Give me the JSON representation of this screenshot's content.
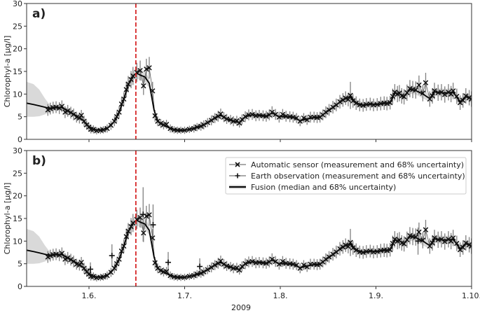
{
  "chart_data": [
    {
      "type": "line",
      "panel_label": "a)",
      "ylabel": "Chlorophyl-a [µg/l]",
      "xlabel": "",
      "ylim": [
        0,
        30
      ],
      "xlim": [
        5.348,
        10
      ],
      "yticks": [
        0,
        5,
        10,
        15,
        20,
        25,
        30
      ],
      "xticks": [
        6,
        7,
        8,
        9,
        10
      ],
      "xtick_labels": [
        "",
        "",
        "",
        "",
        ""
      ],
      "show_eo": false
    },
    {
      "type": "line",
      "panel_label": "b)",
      "ylabel": "Chlorophyl-a [µg/l]",
      "xlabel": "2009",
      "ylim": [
        0,
        30
      ],
      "xlim": [
        5.348,
        10
      ],
      "yticks": [
        0,
        5,
        10,
        15,
        20,
        25,
        30
      ],
      "xticks": [
        6,
        7,
        8,
        9,
        10
      ],
      "xtick_labels": [
        "1.6.",
        "1.7.",
        "1.8.",
        "1.9.",
        "1.10."
      ],
      "show_eo": true,
      "legend": {
        "placement": "top-right",
        "entries": [
          "Automatic sensor (measurement and 68% uncertainty)",
          "Earth observation (measurement and 68% uncertainty)",
          "Fusion (median and 68% uncertainty)"
        ]
      }
    }
  ],
  "shared_series": {
    "event_line_x": 6.49,
    "event_line_color": "#d62728",
    "fusion_columns": [
      "x_month",
      "median",
      "lower68",
      "upper68"
    ],
    "fusion": [
      [
        5.348,
        8.0,
        5.0,
        12.7
      ],
      [
        5.42,
        7.7,
        5.0,
        12.2
      ],
      [
        5.48,
        7.4,
        5.1,
        11.0
      ],
      [
        5.54,
        7.1,
        5.5,
        9.0
      ],
      [
        5.595,
        6.8,
        6.1,
        7.5
      ],
      [
        5.656,
        7.0,
        6.4,
        7.6
      ],
      [
        5.717,
        7.0,
        6.4,
        7.6
      ],
      [
        5.778,
        6.3,
        5.7,
        6.9
      ],
      [
        5.839,
        5.6,
        5.0,
        6.2
      ],
      [
        5.9,
        4.8,
        4.2,
        5.4
      ],
      [
        5.949,
        4.0,
        3.4,
        4.6
      ],
      [
        5.998,
        2.8,
        2.3,
        3.3
      ],
      [
        6.046,
        2.2,
        1.8,
        2.6
      ],
      [
        6.12,
        2.0,
        1.6,
        2.4
      ],
      [
        6.19,
        2.4,
        2.0,
        2.8
      ],
      [
        6.266,
        4.0,
        3.5,
        4.5
      ],
      [
        6.315,
        6.0,
        5.4,
        6.6
      ],
      [
        6.364,
        8.9,
        8.2,
        9.6
      ],
      [
        6.41,
        12.0,
        11.2,
        12.8
      ],
      [
        6.46,
        14.0,
        13.0,
        15.0
      ],
      [
        6.5,
        14.6,
        13.5,
        15.7
      ],
      [
        6.535,
        14.2,
        13.0,
        15.4
      ],
      [
        6.584,
        13.8,
        12.6,
        15.0
      ],
      [
        6.63,
        12.4,
        11.3,
        13.5
      ],
      [
        6.68,
        6.5,
        5.8,
        7.2
      ],
      [
        6.718,
        4.0,
        3.5,
        4.5
      ],
      [
        6.78,
        3.2,
        2.8,
        3.6
      ],
      [
        6.85,
        2.4,
        2.0,
        2.8
      ],
      [
        6.925,
        2.0,
        1.6,
        2.4
      ],
      [
        7.0,
        2.0,
        1.6,
        2.4
      ],
      [
        7.097,
        2.4,
        2.0,
        2.8
      ],
      [
        7.17,
        2.9,
        2.5,
        3.3
      ],
      [
        7.24,
        3.7,
        3.2,
        4.2
      ],
      [
        7.316,
        4.7,
        4.2,
        5.2
      ],
      [
        7.377,
        5.3,
        4.8,
        5.8
      ],
      [
        7.44,
        4.5,
        4.0,
        5.0
      ],
      [
        7.51,
        4.0,
        3.5,
        4.5
      ],
      [
        7.573,
        3.7,
        3.2,
        4.2
      ],
      [
        7.634,
        5.0,
        4.5,
        5.5
      ],
      [
        7.707,
        5.4,
        4.9,
        5.9
      ],
      [
        7.78,
        5.3,
        4.8,
        5.8
      ],
      [
        7.853,
        5.1,
        4.6,
        5.6
      ],
      [
        7.914,
        5.8,
        5.2,
        6.4
      ],
      [
        7.988,
        5.0,
        4.5,
        5.5
      ],
      [
        8.06,
        5.0,
        4.5,
        5.5
      ],
      [
        8.134,
        4.9,
        4.4,
        5.4
      ],
      [
        8.207,
        4.1,
        3.6,
        4.6
      ],
      [
        8.28,
        4.5,
        4.0,
        5.0
      ],
      [
        8.353,
        4.8,
        4.3,
        5.3
      ],
      [
        8.415,
        4.9,
        4.4,
        5.4
      ],
      [
        8.476,
        5.9,
        5.3,
        6.5
      ],
      [
        8.55,
        7.0,
        6.4,
        7.6
      ],
      [
        8.623,
        8.2,
        7.5,
        8.9
      ],
      [
        8.683,
        9.0,
        8.3,
        9.7
      ],
      [
        8.733,
        9.4,
        8.6,
        10.2
      ],
      [
        8.793,
        8.1,
        7.4,
        8.8
      ],
      [
        8.866,
        7.5,
        6.8,
        8.2
      ],
      [
        8.94,
        7.8,
        7.1,
        8.5
      ],
      [
        9.013,
        7.7,
        7.0,
        8.4
      ],
      [
        9.086,
        8.0,
        7.3,
        8.7
      ],
      [
        9.148,
        8.1,
        7.4,
        8.8
      ],
      [
        9.197,
        10.2,
        9.4,
        11.0
      ],
      [
        9.245,
        10.1,
        9.3,
        10.9
      ],
      [
        9.294,
        9.5,
        8.7,
        10.3
      ],
      [
        9.355,
        11.0,
        10.1,
        11.9
      ],
      [
        9.416,
        10.8,
        9.9,
        11.7
      ],
      [
        9.49,
        10.0,
        9.1,
        10.9
      ],
      [
        9.563,
        9.0,
        8.2,
        9.8
      ],
      [
        9.612,
        10.5,
        9.6,
        11.4
      ],
      [
        9.685,
        10.3,
        9.4,
        11.2
      ],
      [
        9.758,
        10.3,
        9.4,
        11.2
      ],
      [
        9.807,
        10.4,
        9.5,
        11.3
      ],
      [
        9.88,
        8.3,
        7.5,
        9.1
      ],
      [
        9.94,
        9.4,
        8.6,
        10.2
      ],
      [
        9.998,
        8.9,
        8.1,
        9.7
      ]
    ],
    "sensor_columns": [
      "x_month",
      "value",
      "uncertainty68"
    ],
    "sensor": [
      [
        5.57,
        6.5,
        1.3
      ],
      [
        5.595,
        6.8,
        1.3
      ],
      [
        5.625,
        7.0,
        1.3
      ],
      [
        5.656,
        7.1,
        1.3
      ],
      [
        5.69,
        6.9,
        1.3
      ],
      [
        5.717,
        7.3,
        1.3
      ],
      [
        5.75,
        6.0,
        1.3
      ],
      [
        5.778,
        6.3,
        1.3
      ],
      [
        5.81,
        5.9,
        1.3
      ],
      [
        5.839,
        5.5,
        1.3
      ],
      [
        5.87,
        4.9,
        1.2
      ],
      [
        5.9,
        4.7,
        1.2
      ],
      [
        5.92,
        5.3,
        1.2
      ],
      [
        5.949,
        4.0,
        1.2
      ],
      [
        5.975,
        3.2,
        1.0
      ],
      [
        5.998,
        2.7,
        1.0
      ],
      [
        6.02,
        2.2,
        0.9
      ],
      [
        6.046,
        2.2,
        0.9
      ],
      [
        6.08,
        1.9,
        0.8
      ],
      [
        6.12,
        2.0,
        0.8
      ],
      [
        6.15,
        2.1,
        0.8
      ],
      [
        6.19,
        2.4,
        0.9
      ],
      [
        6.23,
        3.1,
        1.0
      ],
      [
        6.266,
        4.0,
        1.1
      ],
      [
        6.29,
        5.0,
        1.2
      ],
      [
        6.315,
        6.0,
        1.3
      ],
      [
        6.34,
        7.8,
        1.4
      ],
      [
        6.364,
        8.9,
        1.5
      ],
      [
        6.39,
        11.0,
        1.7
      ],
      [
        6.41,
        12.2,
        1.8
      ],
      [
        6.44,
        13.2,
        1.9
      ],
      [
        6.46,
        14.0,
        2.0
      ],
      [
        6.5,
        14.8,
        2.1
      ],
      [
        6.535,
        15.2,
        2.2
      ],
      [
        6.57,
        11.8,
        2.0
      ],
      [
        6.6,
        15.5,
        2.3
      ],
      [
        6.63,
        15.8,
        2.4
      ],
      [
        6.665,
        10.7,
        2.0
      ],
      [
        6.69,
        5.2,
        1.3
      ],
      [
        6.718,
        4.0,
        1.1
      ],
      [
        6.75,
        3.5,
        1.0
      ],
      [
        6.78,
        3.2,
        1.0
      ],
      [
        6.81,
        3.3,
        1.0
      ],
      [
        6.85,
        2.4,
        0.9
      ],
      [
        6.89,
        2.1,
        0.8
      ],
      [
        6.925,
        2.0,
        0.8
      ],
      [
        6.96,
        2.0,
        0.8
      ],
      [
        7.0,
        2.0,
        0.8
      ],
      [
        7.05,
        2.2,
        0.8
      ],
      [
        7.097,
        2.4,
        0.9
      ],
      [
        7.13,
        2.7,
        0.9
      ],
      [
        7.17,
        2.9,
        1.0
      ],
      [
        7.2,
        3.2,
        1.0
      ],
      [
        7.24,
        3.7,
        1.0
      ],
      [
        7.28,
        4.2,
        1.1
      ],
      [
        7.316,
        4.7,
        1.1
      ],
      [
        7.35,
        5.1,
        1.2
      ],
      [
        7.377,
        5.6,
        1.2
      ],
      [
        7.41,
        4.9,
        1.1
      ],
      [
        7.44,
        4.5,
        1.1
      ],
      [
        7.48,
        4.3,
        1.1
      ],
      [
        7.51,
        4.0,
        1.1
      ],
      [
        7.545,
        4.1,
        1.1
      ],
      [
        7.573,
        3.6,
        1.0
      ],
      [
        7.6,
        4.4,
        1.1
      ],
      [
        7.634,
        5.0,
        1.2
      ],
      [
        7.67,
        5.4,
        1.2
      ],
      [
        7.707,
        5.5,
        1.2
      ],
      [
        7.745,
        5.2,
        1.2
      ],
      [
        7.78,
        5.3,
        1.2
      ],
      [
        7.82,
        5.2,
        1.2
      ],
      [
        7.853,
        5.1,
        1.2
      ],
      [
        7.885,
        5.4,
        1.2
      ],
      [
        7.914,
        6.0,
        1.3
      ],
      [
        7.95,
        5.5,
        1.2
      ],
      [
        7.988,
        4.9,
        1.2
      ],
      [
        8.025,
        5.5,
        1.2
      ],
      [
        8.06,
        5.1,
        1.2
      ],
      [
        8.1,
        5.0,
        1.2
      ],
      [
        8.134,
        4.9,
        1.2
      ],
      [
        8.17,
        4.7,
        1.1
      ],
      [
        8.207,
        4.0,
        1.1
      ],
      [
        8.245,
        4.7,
        1.1
      ],
      [
        8.28,
        4.3,
        1.1
      ],
      [
        8.315,
        4.9,
        1.2
      ],
      [
        8.353,
        4.9,
        1.2
      ],
      [
        8.385,
        4.8,
        1.2
      ],
      [
        8.415,
        4.9,
        1.2
      ],
      [
        8.445,
        5.4,
        1.2
      ],
      [
        8.476,
        6.0,
        1.3
      ],
      [
        8.51,
        6.5,
        1.3
      ],
      [
        8.55,
        7.1,
        1.4
      ],
      [
        8.585,
        7.6,
        1.4
      ],
      [
        8.623,
        8.3,
        1.5
      ],
      [
        8.655,
        8.7,
        1.5
      ],
      [
        8.683,
        9.1,
        1.5
      ],
      [
        8.71,
        8.8,
        1.5
      ],
      [
        8.733,
        9.7,
        3.0
      ],
      [
        8.76,
        8.5,
        1.5
      ],
      [
        8.793,
        8.0,
        1.5
      ],
      [
        8.83,
        7.6,
        1.4
      ],
      [
        8.866,
        7.5,
        1.4
      ],
      [
        8.9,
        7.7,
        1.4
      ],
      [
        8.94,
        7.8,
        1.4
      ],
      [
        8.975,
        7.6,
        1.4
      ],
      [
        9.013,
        7.7,
        1.4
      ],
      [
        9.05,
        7.9,
        1.5
      ],
      [
        9.086,
        8.0,
        1.5
      ],
      [
        9.115,
        7.9,
        1.5
      ],
      [
        9.148,
        8.1,
        1.5
      ],
      [
        9.175,
        9.5,
        1.7
      ],
      [
        9.197,
        10.4,
        1.8
      ],
      [
        9.225,
        10.0,
        1.8
      ],
      [
        9.245,
        10.2,
        1.8
      ],
      [
        9.27,
        9.6,
        1.7
      ],
      [
        9.294,
        9.4,
        1.7
      ],
      [
        9.325,
        10.3,
        1.8
      ],
      [
        9.355,
        11.2,
        1.9
      ],
      [
        9.385,
        11.0,
        1.9
      ],
      [
        9.416,
        10.9,
        1.9
      ],
      [
        9.45,
        12.0,
        2.1
      ],
      [
        9.49,
        10.2,
        1.8
      ],
      [
        9.52,
        12.5,
        2.2
      ],
      [
        9.563,
        8.9,
        1.7
      ],
      [
        9.59,
        9.6,
        1.7
      ],
      [
        9.612,
        10.7,
        1.8
      ],
      [
        9.65,
        10.3,
        1.8
      ],
      [
        9.685,
        10.4,
        1.8
      ],
      [
        9.72,
        9.9,
        1.8
      ],
      [
        9.758,
        10.4,
        1.8
      ],
      [
        9.785,
        10.0,
        1.8
      ],
      [
        9.807,
        10.7,
        1.8
      ],
      [
        9.845,
        9.5,
        1.7
      ],
      [
        9.88,
        8.1,
        1.6
      ],
      [
        9.91,
        8.6,
        1.6
      ],
      [
        9.94,
        9.6,
        1.7
      ],
      [
        9.975,
        9.2,
        1.7
      ],
      [
        9.998,
        8.9,
        1.7
      ]
    ],
    "earth_observation_columns": [
      "x_month",
      "value",
      "uncertainty68"
    ],
    "earth_observation": [
      [
        6.015,
        3.8,
        1.5
      ],
      [
        6.24,
        6.8,
        2.5
      ],
      [
        6.566,
        15.9,
        6.0
      ],
      [
        6.67,
        13.6,
        4.5
      ],
      [
        6.828,
        5.3,
        2.3
      ],
      [
        7.158,
        4.4,
        1.8
      ],
      [
        9.44,
        10.0,
        3.0
      ]
    ]
  },
  "colors": {
    "marker": "#111111",
    "errorbar": "#808080",
    "band": "#d9d9d9",
    "axis": "#333333",
    "event_line": "#d62728"
  }
}
